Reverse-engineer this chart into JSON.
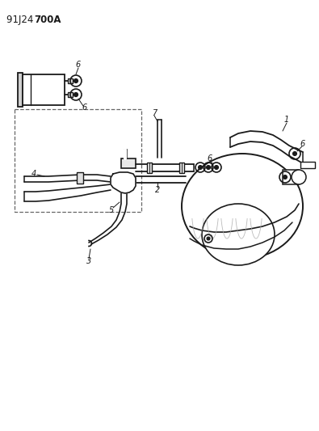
{
  "title_normal": "91J24 ",
  "title_bold": "700A",
  "bg": "#ffffff",
  "lc": "#1a1a1a",
  "dc": "#666666",
  "figsize": [
    3.95,
    5.33
  ],
  "dpi": 100
}
